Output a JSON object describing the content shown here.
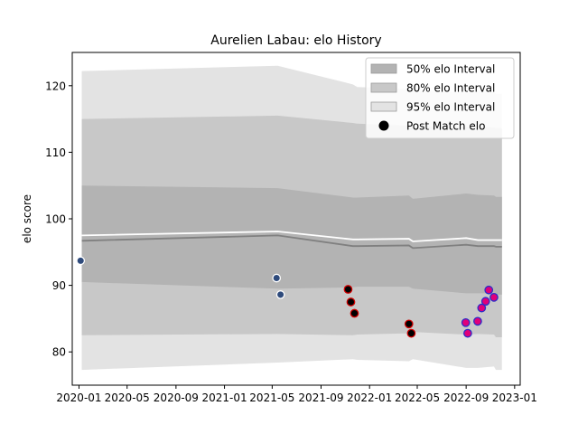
{
  "chart_data": {
    "type": "line",
    "title": "Aurelien Labau: elo History",
    "xlabel": "",
    "ylabel": "elo score",
    "xlim": [
      "2019-12-15",
      "2023-01-15"
    ],
    "ylim": [
      75,
      125
    ],
    "x_ticks": [
      "2020-01",
      "2020-05",
      "2020-09",
      "2021-01",
      "2021-05",
      "2021-09",
      "2022-01",
      "2022-05",
      "2022-09",
      "2023-01"
    ],
    "y_ticks": [
      80,
      90,
      100,
      110,
      120
    ],
    "grid": false,
    "legend_position": "top-right",
    "legend": [
      {
        "label": "50% elo Interval",
        "kind": "band",
        "color": "#b3b3b3"
      },
      {
        "label": "80% elo Interval",
        "kind": "band",
        "color": "#c8c8c8"
      },
      {
        "label": "95% elo Interval",
        "kind": "band",
        "color": "#e3e3e3"
      },
      {
        "label": "Post Match elo",
        "kind": "point",
        "color": "#000000"
      }
    ],
    "bands": {
      "x": [
        "2020-01-08",
        "2021-05-15",
        "2021-11-20",
        "2021-12-01",
        "2022-04-10",
        "2022-04-20",
        "2022-09-01",
        "2022-10-01",
        "2022-11-10",
        "2022-11-15",
        "2022-11-30"
      ],
      "p95_upper": [
        122.2,
        123.0,
        120.2,
        119.8,
        119.5,
        119.3,
        119.0,
        119.2,
        119.0,
        118.8,
        118.8
      ],
      "p95_lower": [
        77.3,
        78.4,
        78.9,
        78.8,
        78.6,
        78.9,
        77.6,
        77.6,
        77.8,
        77.3,
        77.3
      ],
      "p80_upper": [
        115.0,
        115.5,
        114.4,
        114.3,
        114.0,
        113.9,
        113.8,
        113.9,
        113.7,
        113.6,
        113.6
      ],
      "p80_lower": [
        82.5,
        82.7,
        82.5,
        82.6,
        82.8,
        83.0,
        82.6,
        82.7,
        82.6,
        82.2,
        82.2
      ],
      "p50_upper": [
        105.0,
        104.6,
        103.2,
        103.2,
        103.5,
        103.0,
        103.8,
        103.6,
        103.5,
        103.3,
        103.3
      ],
      "p50_lower": [
        90.5,
        89.5,
        89.7,
        89.8,
        89.8,
        89.5,
        88.8,
        88.8,
        88.8,
        88.6,
        88.6
      ]
    },
    "series": [
      {
        "kind": "line",
        "color": "#808080",
        "x": [
          "2020-01-08",
          "2021-05-15",
          "2021-11-20",
          "2021-12-01",
          "2022-04-10",
          "2022-04-20",
          "2022-09-01",
          "2022-10-01",
          "2022-11-10",
          "2022-11-15",
          "2022-11-30"
        ],
        "y": [
          96.7,
          97.5,
          95.9,
          95.9,
          96.0,
          95.6,
          96.1,
          95.9,
          95.9,
          95.8,
          95.8
        ]
      },
      {
        "kind": "line",
        "color": "#ffffff",
        "x": [
          "2020-01-08",
          "2021-05-15",
          "2021-11-20",
          "2021-12-01",
          "2022-04-10",
          "2022-04-20",
          "2022-09-01",
          "2022-10-01",
          "2022-11-10",
          "2022-11-15",
          "2022-11-30"
        ],
        "y": [
          97.5,
          98.1,
          96.9,
          96.9,
          97.0,
          96.6,
          97.1,
          96.8,
          96.8,
          96.8,
          96.8
        ]
      }
    ],
    "points": [
      {
        "x": "2020-01-05",
        "y": 93.7,
        "fill": "#2f4b7c",
        "edge": "#ffffff"
      },
      {
        "x": "2021-05-12",
        "y": 91.1,
        "fill": "#2f4b7c",
        "edge": "#ffffff"
      },
      {
        "x": "2021-05-22",
        "y": 88.6,
        "fill": "#2f4b7c",
        "edge": "#ffffff"
      },
      {
        "x": "2021-11-08",
        "y": 89.4,
        "fill": "#000000",
        "edge": "#d00000"
      },
      {
        "x": "2021-11-15",
        "y": 87.5,
        "fill": "#000000",
        "edge": "#d00000"
      },
      {
        "x": "2021-11-24",
        "y": 85.8,
        "fill": "#000000",
        "edge": "#d00000"
      },
      {
        "x": "2022-04-10",
        "y": 84.2,
        "fill": "#000000",
        "edge": "#d00000"
      },
      {
        "x": "2022-04-16",
        "y": 82.8,
        "fill": "#000000",
        "edge": "#d00000"
      },
      {
        "x": "2022-08-31",
        "y": 84.4,
        "fill": "#e0007a",
        "edge": "#2c2cc8"
      },
      {
        "x": "2022-09-05",
        "y": 82.8,
        "fill": "#e0007a",
        "edge": "#2c2cc8"
      },
      {
        "x": "2022-09-30",
        "y": 84.6,
        "fill": "#e0007a",
        "edge": "#2c2cc8"
      },
      {
        "x": "2022-10-10",
        "y": 86.6,
        "fill": "#e0007a",
        "edge": "#2c2cc8"
      },
      {
        "x": "2022-10-20",
        "y": 87.6,
        "fill": "#e0007a",
        "edge": "#2c2cc8"
      },
      {
        "x": "2022-10-28",
        "y": 89.3,
        "fill": "#e0007a",
        "edge": "#2c2cc8"
      },
      {
        "x": "2022-11-10",
        "y": 88.2,
        "fill": "#e0007a",
        "edge": "#2c2cc8"
      }
    ]
  }
}
